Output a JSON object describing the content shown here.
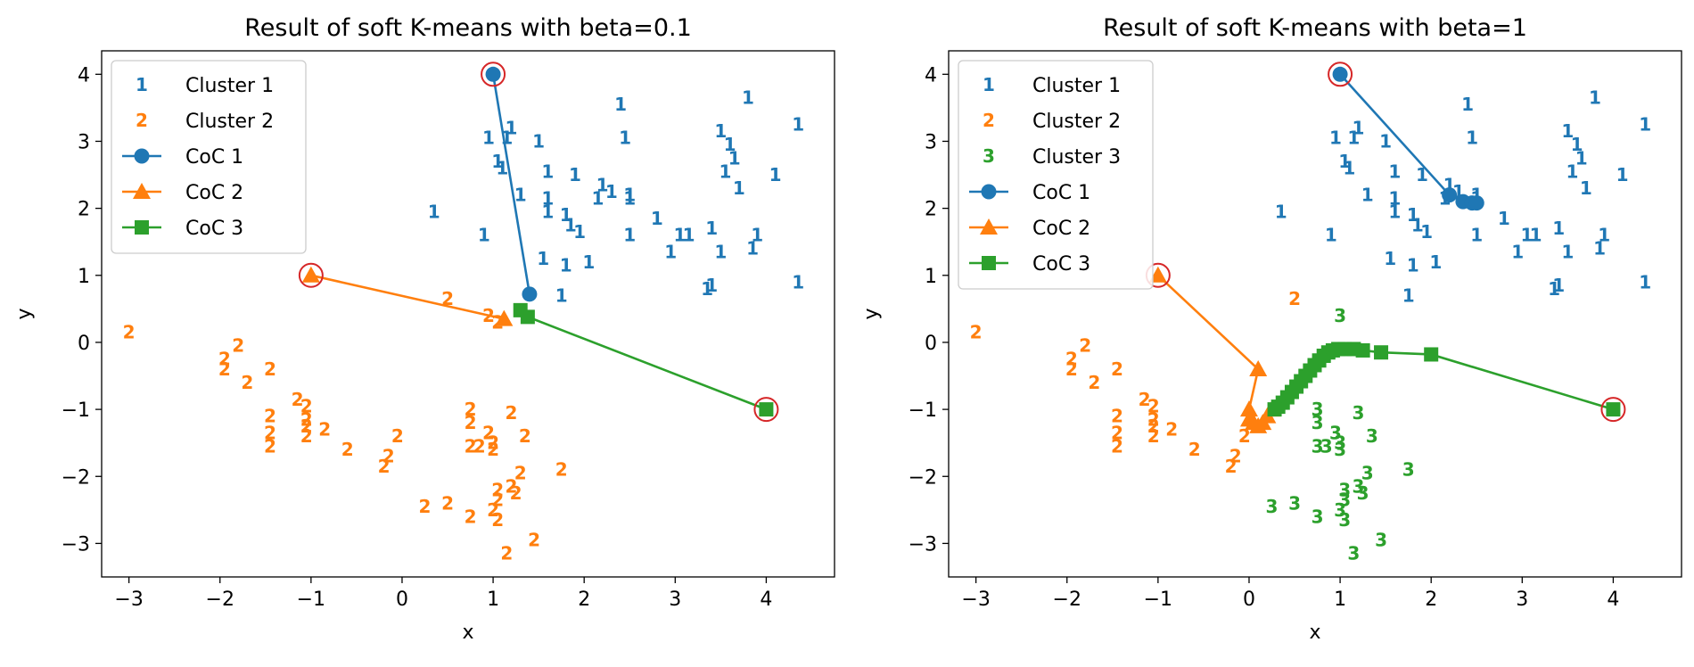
{
  "colors": {
    "c1": "#1f77b4",
    "c2": "#ff7f0e",
    "c3": "#2ca02c",
    "init_circle": "#d62728"
  },
  "chart_data": [
    {
      "type": "scatter",
      "title": "Result of soft K-means with beta=0.1",
      "xlabel": "x",
      "ylabel": "y",
      "xlim": [
        -3.3,
        4.75
      ],
      "ylim": [
        -3.5,
        4.35
      ],
      "xticks": [
        -3,
        -2,
        -1,
        0,
        1,
        2,
        3,
        4
      ],
      "yticks": [
        -3,
        -2,
        -1,
        0,
        1,
        2,
        3,
        4
      ],
      "legend_position": "upper-left",
      "legend": [
        {
          "label": "Cluster 1",
          "kind": "marker",
          "glyph": "1",
          "color": "#1f77b4"
        },
        {
          "label": "Cluster 2",
          "kind": "marker",
          "glyph": "2",
          "color": "#ff7f0e"
        },
        {
          "label": "CoC 1",
          "kind": "line",
          "marker": "circle",
          "color": "#1f77b4"
        },
        {
          "label": "CoC 2",
          "kind": "line",
          "marker": "triangle",
          "color": "#ff7f0e"
        },
        {
          "label": "CoC 3",
          "kind": "line",
          "marker": "square",
          "color": "#2ca02c"
        }
      ],
      "clusters": [
        {
          "glyph": "1",
          "color": "#1f77b4",
          "points": [
            [
              2.4,
              3.55
            ],
            [
              3.8,
              3.65
            ],
            [
              1.2,
              3.2
            ],
            [
              3.5,
              3.15
            ],
            [
              4.35,
              3.25
            ],
            [
              0.95,
              3.05
            ],
            [
              1.15,
              3.05
            ],
            [
              1.5,
              3.0
            ],
            [
              2.45,
              3.05
            ],
            [
              3.6,
              2.95
            ],
            [
              1.05,
              2.7
            ],
            [
              3.65,
              2.75
            ],
            [
              1.1,
              2.6
            ],
            [
              1.6,
              2.55
            ],
            [
              1.9,
              2.5
            ],
            [
              3.55,
              2.55
            ],
            [
              4.1,
              2.5
            ],
            [
              2.2,
              2.35
            ],
            [
              2.3,
              2.25
            ],
            [
              2.5,
              2.2
            ],
            [
              1.3,
              2.2
            ],
            [
              1.6,
              2.15
            ],
            [
              2.15,
              2.15
            ],
            [
              2.5,
              2.15
            ],
            [
              3.7,
              2.3
            ],
            [
              0.35,
              1.95
            ],
            [
              1.6,
              1.95
            ],
            [
              1.8,
              1.9
            ],
            [
              2.8,
              1.85
            ],
            [
              1.85,
              1.75
            ],
            [
              1.95,
              1.65
            ],
            [
              3.4,
              1.7
            ],
            [
              3.05,
              1.6
            ],
            [
              3.15,
              1.6
            ],
            [
              0.9,
              1.6
            ],
            [
              2.5,
              1.6
            ],
            [
              3.9,
              1.6
            ],
            [
              2.95,
              1.35
            ],
            [
              3.5,
              1.35
            ],
            [
              3.85,
              1.4
            ],
            [
              1.55,
              1.25
            ],
            [
              2.05,
              1.2
            ],
            [
              1.8,
              1.15
            ],
            [
              4.35,
              0.9
            ],
            [
              3.35,
              0.8
            ],
            [
              3.4,
              0.85
            ],
            [
              1.75,
              0.7
            ]
          ]
        },
        {
          "glyph": "2",
          "color": "#ff7f0e",
          "points": [
            [
              -3.0,
              0.15
            ],
            [
              -1.8,
              -0.05
            ],
            [
              -1.95,
              -0.25
            ],
            [
              -1.95,
              -0.4
            ],
            [
              -1.45,
              -0.4
            ],
            [
              -1.7,
              -0.6
            ],
            [
              -1.15,
              -0.85
            ],
            [
              -1.05,
              -0.95
            ],
            [
              -1.45,
              -1.1
            ],
            [
              -1.05,
              -1.15
            ],
            [
              -1.05,
              -1.25
            ],
            [
              -0.85,
              -1.3
            ],
            [
              -1.45,
              -1.35
            ],
            [
              -1.05,
              -1.4
            ],
            [
              -1.45,
              -1.55
            ],
            [
              -0.6,
              -1.6
            ],
            [
              -0.05,
              -1.4
            ],
            [
              -0.15,
              -1.7
            ],
            [
              -0.2,
              -1.85
            ],
            [
              0.75,
              -1.0
            ],
            [
              0.75,
              -1.2
            ],
            [
              1.2,
              -1.05
            ],
            [
              0.95,
              -1.35
            ],
            [
              1.35,
              -1.4
            ],
            [
              0.75,
              -1.55
            ],
            [
              0.85,
              -1.55
            ],
            [
              1.0,
              -1.5
            ],
            [
              1.0,
              -1.6
            ],
            [
              1.3,
              -1.95
            ],
            [
              1.75,
              -1.9
            ],
            [
              1.05,
              -2.2
            ],
            [
              1.2,
              -2.15
            ],
            [
              1.25,
              -2.25
            ],
            [
              1.05,
              -2.35
            ],
            [
              0.5,
              -2.4
            ],
            [
              0.25,
              -2.45
            ],
            [
              1.0,
              -2.5
            ],
            [
              1.05,
              -2.65
            ],
            [
              0.75,
              -2.6
            ],
            [
              1.45,
              -2.95
            ],
            [
              1.15,
              -3.15
            ],
            [
              0.5,
              0.65
            ],
            [
              0.95,
              0.4
            ],
            [
              1.05,
              0.3
            ]
          ]
        }
      ],
      "paths": [
        {
          "name": "CoC 1",
          "marker": "circle",
          "color": "#1f77b4",
          "points": [
            [
              1.0,
              4.0
            ],
            [
              1.4,
              0.72
            ]
          ]
        },
        {
          "name": "CoC 2",
          "marker": "triangle",
          "color": "#ff7f0e",
          "points": [
            [
              -1.0,
              1.0
            ],
            [
              1.12,
              0.35
            ]
          ]
        },
        {
          "name": "CoC 3",
          "marker": "square",
          "color": "#2ca02c",
          "points": [
            [
              4.0,
              -1.0
            ],
            [
              1.38,
              0.38
            ],
            [
              1.3,
              0.48
            ]
          ]
        }
      ],
      "initial_centers": [
        [
          1.0,
          4.0
        ],
        [
          -1.0,
          1.0
        ],
        [
          4.0,
          -1.0
        ]
      ]
    },
    {
      "type": "scatter",
      "title": "Result of soft K-means with beta=1",
      "xlabel": "x",
      "ylabel": "y",
      "xlim": [
        -3.3,
        4.75
      ],
      "ylim": [
        -3.5,
        4.35
      ],
      "xticks": [
        -3,
        -2,
        -1,
        0,
        1,
        2,
        3,
        4
      ],
      "yticks": [
        -3,
        -2,
        -1,
        0,
        1,
        2,
        3,
        4
      ],
      "legend_position": "upper-left",
      "legend": [
        {
          "label": "Cluster 1",
          "kind": "marker",
          "glyph": "1",
          "color": "#1f77b4"
        },
        {
          "label": "Cluster 2",
          "kind": "marker",
          "glyph": "2",
          "color": "#ff7f0e"
        },
        {
          "label": "Cluster 3",
          "kind": "marker",
          "glyph": "3",
          "color": "#2ca02c"
        },
        {
          "label": "CoC 1",
          "kind": "line",
          "marker": "circle",
          "color": "#1f77b4"
        },
        {
          "label": "CoC 2",
          "kind": "line",
          "marker": "triangle",
          "color": "#ff7f0e"
        },
        {
          "label": "CoC 3",
          "kind": "line",
          "marker": "square",
          "color": "#2ca02c"
        }
      ],
      "clusters": [
        {
          "glyph": "1",
          "color": "#1f77b4",
          "points": [
            [
              2.4,
              3.55
            ],
            [
              3.8,
              3.65
            ],
            [
              1.2,
              3.2
            ],
            [
              3.5,
              3.15
            ],
            [
              4.35,
              3.25
            ],
            [
              0.95,
              3.05
            ],
            [
              1.15,
              3.05
            ],
            [
              1.5,
              3.0
            ],
            [
              2.45,
              3.05
            ],
            [
              3.6,
              2.95
            ],
            [
              1.05,
              2.7
            ],
            [
              3.65,
              2.75
            ],
            [
              1.1,
              2.6
            ],
            [
              1.6,
              2.55
            ],
            [
              1.9,
              2.5
            ],
            [
              3.55,
              2.55
            ],
            [
              4.1,
              2.5
            ],
            [
              2.2,
              2.35
            ],
            [
              2.3,
              2.25
            ],
            [
              2.5,
              2.2
            ],
            [
              1.3,
              2.2
            ],
            [
              1.6,
              2.15
            ],
            [
              2.15,
              2.15
            ],
            [
              2.5,
              2.15
            ],
            [
              3.7,
              2.3
            ],
            [
              0.35,
              1.95
            ],
            [
              1.6,
              1.95
            ],
            [
              1.8,
              1.9
            ],
            [
              2.8,
              1.85
            ],
            [
              1.85,
              1.75
            ],
            [
              1.95,
              1.65
            ],
            [
              3.4,
              1.7
            ],
            [
              3.05,
              1.6
            ],
            [
              3.15,
              1.6
            ],
            [
              0.9,
              1.6
            ],
            [
              2.5,
              1.6
            ],
            [
              3.9,
              1.6
            ],
            [
              2.95,
              1.35
            ],
            [
              3.5,
              1.35
            ],
            [
              3.85,
              1.4
            ],
            [
              1.55,
              1.25
            ],
            [
              2.05,
              1.2
            ],
            [
              1.8,
              1.15
            ],
            [
              4.35,
              0.9
            ],
            [
              3.35,
              0.8
            ],
            [
              3.4,
              0.85
            ],
            [
              1.75,
              0.7
            ]
          ]
        },
        {
          "glyph": "2",
          "color": "#ff7f0e",
          "points": [
            [
              -3.0,
              0.15
            ],
            [
              -1.8,
              -0.05
            ],
            [
              -1.95,
              -0.25
            ],
            [
              -1.95,
              -0.4
            ],
            [
              -1.45,
              -0.4
            ],
            [
              -1.7,
              -0.6
            ],
            [
              -1.15,
              -0.85
            ],
            [
              -1.05,
              -0.95
            ],
            [
              -1.45,
              -1.1
            ],
            [
              -1.05,
              -1.15
            ],
            [
              -1.05,
              -1.25
            ],
            [
              -0.85,
              -1.3
            ],
            [
              -1.45,
              -1.35
            ],
            [
              -1.05,
              -1.4
            ],
            [
              -1.45,
              -1.55
            ],
            [
              -0.6,
              -1.6
            ],
            [
              -0.05,
              -1.4
            ],
            [
              -0.15,
              -1.7
            ],
            [
              -0.2,
              -1.85
            ],
            [
              0.5,
              0.65
            ]
          ]
        },
        {
          "glyph": "3",
          "color": "#2ca02c",
          "points": [
            [
              1.0,
              0.4
            ],
            [
              0.75,
              -1.0
            ],
            [
              0.75,
              -1.2
            ],
            [
              1.2,
              -1.05
            ],
            [
              0.95,
              -1.35
            ],
            [
              1.35,
              -1.4
            ],
            [
              0.75,
              -1.55
            ],
            [
              0.85,
              -1.55
            ],
            [
              1.0,
              -1.5
            ],
            [
              1.0,
              -1.6
            ],
            [
              1.3,
              -1.95
            ],
            [
              1.75,
              -1.9
            ],
            [
              1.05,
              -2.2
            ],
            [
              1.2,
              -2.15
            ],
            [
              1.25,
              -2.25
            ],
            [
              1.05,
              -2.35
            ],
            [
              0.5,
              -2.4
            ],
            [
              0.25,
              -2.45
            ],
            [
              1.0,
              -2.5
            ],
            [
              1.05,
              -2.65
            ],
            [
              0.75,
              -2.6
            ],
            [
              1.45,
              -2.95
            ],
            [
              1.15,
              -3.15
            ]
          ]
        }
      ],
      "paths": [
        {
          "name": "CoC 1",
          "marker": "circle",
          "color": "#1f77b4",
          "points": [
            [
              1.0,
              4.0
            ],
            [
              2.2,
              2.2
            ],
            [
              2.35,
              2.1
            ],
            [
              2.45,
              2.08
            ],
            [
              2.5,
              2.08
            ]
          ]
        },
        {
          "name": "CoC 2",
          "marker": "triangle",
          "color": "#ff7f0e",
          "points": [
            [
              -1.0,
              1.0
            ],
            [
              0.1,
              -0.4
            ],
            [
              0.0,
              -1.0
            ],
            [
              0.0,
              -1.15
            ],
            [
              0.05,
              -1.2
            ],
            [
              0.1,
              -1.25
            ],
            [
              0.15,
              -1.2
            ],
            [
              0.2,
              -1.1
            ],
            [
              0.25,
              -1.0
            ]
          ]
        },
        {
          "name": "CoC 3",
          "marker": "square",
          "color": "#2ca02c",
          "points": [
            [
              4.0,
              -1.0
            ],
            [
              2.0,
              -0.18
            ],
            [
              1.45,
              -0.15
            ],
            [
              1.25,
              -0.12
            ],
            [
              1.15,
              -0.1
            ],
            [
              1.05,
              -0.1
            ],
            [
              0.98,
              -0.1
            ],
            [
              0.92,
              -0.12
            ],
            [
              0.87,
              -0.15
            ],
            [
              0.82,
              -0.2
            ],
            [
              0.77,
              -0.27
            ],
            [
              0.72,
              -0.34
            ],
            [
              0.67,
              -0.42
            ],
            [
              0.62,
              -0.5
            ],
            [
              0.57,
              -0.58
            ],
            [
              0.52,
              -0.66
            ],
            [
              0.47,
              -0.74
            ],
            [
              0.42,
              -0.82
            ],
            [
              0.37,
              -0.9
            ],
            [
              0.32,
              -0.96
            ],
            [
              0.28,
              -1.0
            ]
          ]
        }
      ],
      "initial_centers": [
        [
          1.0,
          4.0
        ],
        [
          -1.0,
          1.0
        ],
        [
          4.0,
          -1.0
        ]
      ]
    }
  ]
}
